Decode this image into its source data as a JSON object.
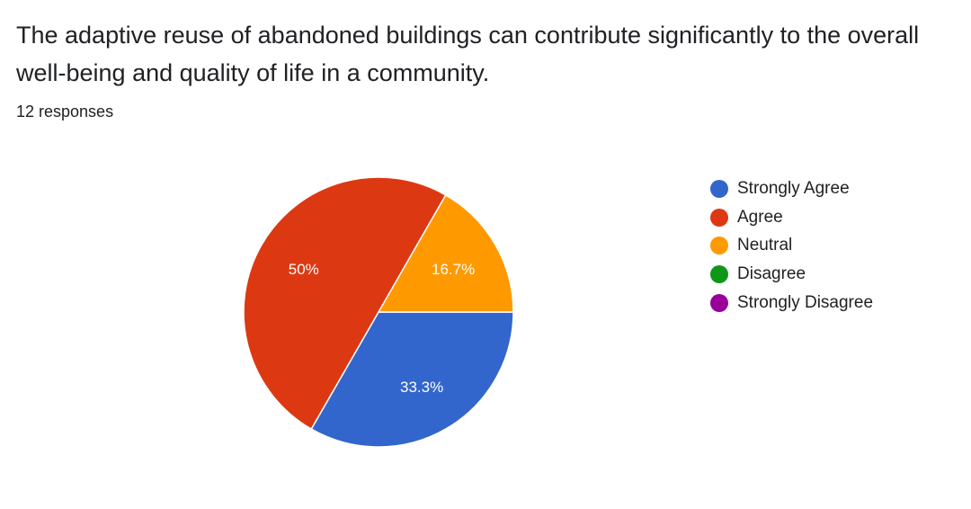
{
  "question": {
    "title": "The adaptive reuse of abandoned buildings can contribute significantly to the overall well-being and quality of life in a community.",
    "responses": "12 responses"
  },
  "chart_data": {
    "type": "pie",
    "title": "",
    "legend_position": "right",
    "slices": [
      {
        "label": "Strongly Agree",
        "value": 33.3,
        "display": "33.3%",
        "color": "#3366cc"
      },
      {
        "label": "Agree",
        "value": 50,
        "display": "50%",
        "color": "#dc3912"
      },
      {
        "label": "Neutral",
        "value": 16.7,
        "display": "16.7%",
        "color": "#ff9900"
      },
      {
        "label": "Disagree",
        "value": 0,
        "display": "",
        "color": "#109618"
      },
      {
        "label": "Strongly Disagree",
        "value": 0,
        "display": "",
        "color": "#990099"
      }
    ]
  }
}
